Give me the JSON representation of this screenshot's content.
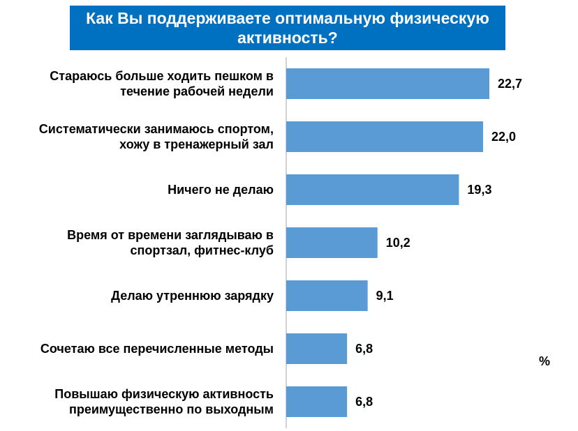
{
  "chart_data": {
    "type": "bar",
    "orientation": "horizontal",
    "title": "Как Вы поддерживаете оптимальную физическую активность?",
    "unit": "%",
    "bar_color": "#5b9bd5",
    "title_background": "#0070c0",
    "categories": [
      "Стараюсь больше ходить пешком в течение рабочей недели",
      "Систематически занимаюсь спортом, хожу в тренажерный зал",
      "Ничего не делаю",
      "Время от времени заглядываю в спортзал, фитнес-клуб",
      "Делаю утреннюю зарядку",
      "Сочетаю все перечисленные методы",
      "Повышаю физическую активность преимущественно по выходным"
    ],
    "category_lines": [
      [
        "Стараюсь больше ходить пешком в",
        "течение рабочей недели"
      ],
      [
        "Систематически занимаюсь спортом,",
        "хожу в тренажерный зал"
      ],
      [
        "Ничего не делаю"
      ],
      [
        "Время от времени заглядываю в",
        "спортзал, фитнес-клуб"
      ],
      [
        "Делаю утреннюю зарядку"
      ],
      [
        "Сочетаю все перечисленные методы"
      ],
      [
        "Повышаю физическую активность",
        "преимущественно по выходным"
      ]
    ],
    "values": [
      22.7,
      22.0,
      19.3,
      10.2,
      9.1,
      6.8,
      6.8
    ],
    "value_labels": [
      "22,7",
      "22,0",
      "19,3",
      "10,2",
      "9,1",
      "6,8",
      "6,8"
    ],
    "grid": false,
    "legend": "none"
  }
}
